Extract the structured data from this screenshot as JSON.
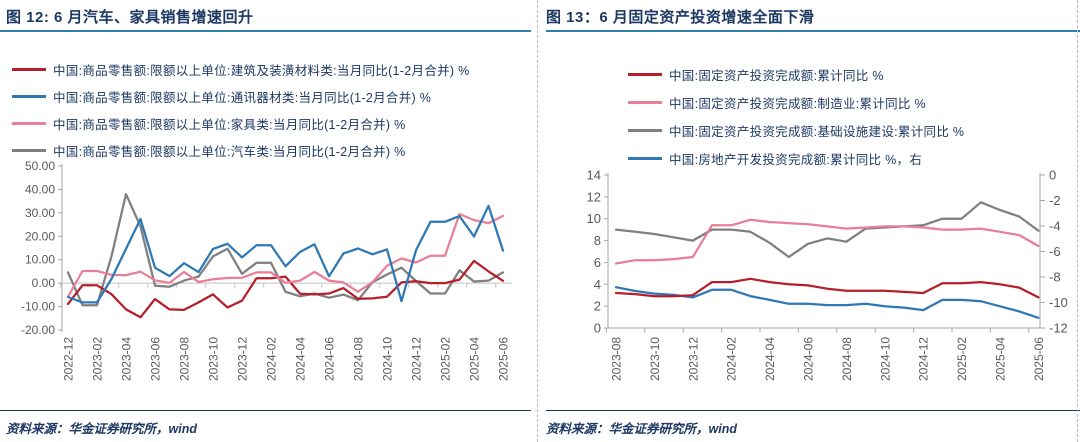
{
  "page": {
    "source_label": "资料来源：",
    "source_text": "华金证券研究所，wind",
    "colors": {
      "navy_text": "#1d3863",
      "title_rule_blue": "#2e7fab",
      "axis_label_gray": "#595959",
      "axis_line_gray": "#a6a6a6",
      "zero_line_gray": "#c2c2c2",
      "divider_gray": "#b8b8b8"
    }
  },
  "chart_data": [
    {
      "id": "fig12",
      "type": "line",
      "title": "图 12: 6 月汽车、家具销售增速回升",
      "grid": false,
      "legend_position": "top",
      "x": [
        "2022-12",
        "2023-01",
        "2023-02",
        "2023-03",
        "2023-04",
        "2023-05",
        "2023-06",
        "2023-07",
        "2023-08",
        "2023-09",
        "2023-10",
        "2023-11",
        "2023-12",
        "2024-01",
        "2024-02",
        "2024-03",
        "2024-04",
        "2024-05",
        "2024-06",
        "2024-07",
        "2024-08",
        "2024-09",
        "2024-10",
        "2024-11",
        "2024-12",
        "2025-01",
        "2025-02",
        "2025-03",
        "2025-04",
        "2025-05",
        "2025-06"
      ],
      "x_note": "1-2月合并：每年1月与2月为同一合并值",
      "x_tick_labels": [
        "2022-12",
        "2023-02",
        "2023-04",
        "2023-06",
        "2023-08",
        "2023-10",
        "2023-12",
        "2024-02",
        "2024-04",
        "2024-06",
        "2024-08",
        "2024-10",
        "2024-12",
        "2025-02",
        "2025-04",
        "2025-06"
      ],
      "y_axis": {
        "min": -20,
        "max": 50,
        "tick_labels": [
          "50.00",
          "40.00",
          "30.00",
          "20.00",
          "10.00",
          "0.00",
          "-10.00",
          "-20.00"
        ]
      },
      "series": [
        {
          "key": "building_materials",
          "name": "中国:商品零售额:限额以上单位:建筑及装潢材料类:当月同比(1-2月合并) %",
          "color": "#b51f2c",
          "axis": "left",
          "values": [
            -8.9,
            -0.9,
            -0.9,
            -4.7,
            -11.2,
            -14.6,
            -6.8,
            -11.2,
            -11.4,
            -8.2,
            -4.8,
            -10.4,
            -7.5,
            2.1,
            2.1,
            2.8,
            -4.5,
            -4.8,
            -4.4,
            -2.1,
            -6.7,
            -6.5,
            -5.8,
            0.3,
            0.8,
            0.0,
            0.0,
            1.5,
            9.5,
            5.0,
            1.0
          ]
        },
        {
          "key": "communications",
          "name": "中国:商品零售额:限额以上单位:通讯器材类:当月同比(1-2月合并) %",
          "color": "#2e78b5",
          "axis": "left",
          "values": [
            -5.9,
            -8.2,
            -8.2,
            1.8,
            14.6,
            27.4,
            6.6,
            3.0,
            8.5,
            4.7,
            14.6,
            16.8,
            11.0,
            16.2,
            16.2,
            7.2,
            13.3,
            16.6,
            2.9,
            12.7,
            14.8,
            12.3,
            14.4,
            -7.7,
            14.0,
            26.2,
            26.2,
            28.6,
            19.9,
            33.0,
            13.9
          ]
        },
        {
          "key": "furniture",
          "name": "中国:商品零售额:限额以上单位:家具类:当月同比(1-2月合并) %",
          "color": "#e87f96",
          "axis": "left",
          "values": [
            -5.8,
            5.2,
            5.2,
            3.5,
            3.4,
            4.9,
            1.2,
            0.1,
            4.8,
            0.5,
            1.7,
            2.2,
            2.3,
            4.6,
            4.6,
            0.2,
            1.1,
            4.8,
            1.1,
            0.3,
            -3.7,
            0.4,
            7.4,
            10.5,
            8.8,
            11.7,
            11.7,
            29.5,
            26.9,
            25.6,
            28.7
          ]
        },
        {
          "key": "auto",
          "name": "中国:商品零售额:限额以上单位:汽车类:当月同比(1-2月合并) %",
          "color": "#7f7f7f",
          "axis": "left",
          "values": [
            4.6,
            -9.4,
            -9.4,
            11.5,
            38.0,
            24.2,
            -1.1,
            -1.5,
            1.1,
            2.8,
            11.4,
            14.7,
            4.0,
            8.7,
            8.7,
            -3.7,
            -5.6,
            -4.4,
            -6.2,
            -4.9,
            -7.3,
            0.4,
            3.7,
            6.6,
            0.9,
            -4.4,
            -4.4,
            5.5,
            0.7,
            1.1,
            4.6
          ]
        }
      ]
    },
    {
      "id": "fig13",
      "type": "line",
      "title": "图 13：6 月固定资产投资增速全面下滑",
      "grid": false,
      "legend_position": "top",
      "x": [
        "2023-08",
        "2023-09",
        "2023-10",
        "2023-11",
        "2023-12",
        "2024-01",
        "2024-02",
        "2024-03",
        "2024-04",
        "2024-05",
        "2024-06",
        "2024-07",
        "2024-08",
        "2024-09",
        "2024-10",
        "2024-11",
        "2024-12",
        "2025-01",
        "2025-02",
        "2025-03",
        "2025-04",
        "2025-05",
        "2025-06"
      ],
      "x_tick_labels": [
        "2023-08",
        "2023-10",
        "2023-12",
        "2024-02",
        "2024-04",
        "2024-06",
        "2024-08",
        "2024-10",
        "2024-12",
        "2025-02",
        "2025-04",
        "2025-06"
      ],
      "y_axis_left": {
        "min": 0,
        "max": 14,
        "tick_labels": [
          "14",
          "12",
          "10",
          "8",
          "6",
          "4",
          "2",
          "0"
        ]
      },
      "y_axis_right": {
        "min": -12,
        "max": 0,
        "tick_labels": [
          "0",
          "-2",
          "-4",
          "-6",
          "-8",
          "-10",
          "-12"
        ]
      },
      "series": [
        {
          "key": "fixed_asset",
          "name": "中国:固定资产投资完成额:累计同比 %",
          "color": "#b51f2c",
          "axis": "left",
          "values": [
            3.2,
            3.1,
            2.9,
            2.9,
            3.0,
            4.2,
            4.2,
            4.5,
            4.2,
            4.0,
            3.9,
            3.6,
            3.4,
            3.4,
            3.4,
            3.3,
            3.2,
            4.1,
            4.1,
            4.2,
            4.0,
            3.7,
            2.8
          ]
        },
        {
          "key": "manufacturing",
          "name": "中国:固定资产投资完成额:制造业:累计同比 %",
          "color": "#e87f96",
          "axis": "left",
          "values": [
            5.9,
            6.2,
            6.2,
            6.3,
            6.5,
            9.4,
            9.4,
            9.9,
            9.7,
            9.6,
            9.5,
            9.3,
            9.1,
            9.2,
            9.3,
            9.3,
            9.2,
            9.0,
            9.0,
            9.1,
            8.8,
            8.5,
            7.5
          ]
        },
        {
          "key": "infrastructure",
          "name": "中国:固定资产投资完成额:基础设施建设:累计同比 %",
          "color": "#7f7f7f",
          "axis": "left",
          "values": [
            9.0,
            8.8,
            8.6,
            8.3,
            8.0,
            9.0,
            9.0,
            8.8,
            7.8,
            6.5,
            7.7,
            8.2,
            7.9,
            9.1,
            9.2,
            9.3,
            9.4,
            10.0,
            10.0,
            11.5,
            10.8,
            10.2,
            8.9
          ]
        },
        {
          "key": "real_estate",
          "name": "中国:房地产开发投资完成额:累计同比 %，右",
          "color": "#2e78b5",
          "axis": "right",
          "values": [
            -8.8,
            -9.1,
            -9.3,
            -9.4,
            -9.6,
            -9.0,
            -9.0,
            -9.5,
            -9.8,
            -10.1,
            -10.1,
            -10.2,
            -10.2,
            -10.1,
            -10.3,
            -10.4,
            -10.6,
            -9.8,
            -9.8,
            -9.9,
            -10.3,
            -10.7,
            -11.2
          ]
        }
      ]
    }
  ]
}
